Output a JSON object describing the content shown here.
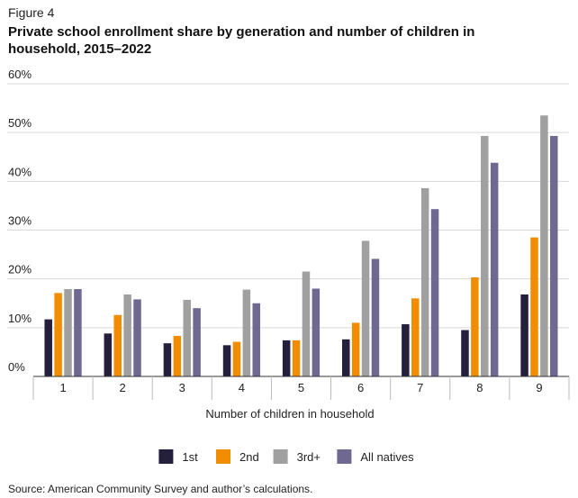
{
  "figure_label": "Figure 4",
  "title": "Private school enrollment share by generation and number of children in household, 2015–2022",
  "source": "Source: American Community Survey and author’s calculations.",
  "chart_data": {
    "type": "bar",
    "xlabel": "Number of children in household",
    "ylabel": "",
    "ylim": [
      0,
      60
    ],
    "yticks": [
      "0%",
      "10%",
      "20%",
      "30%",
      "40%",
      "50%",
      "60%"
    ],
    "grid": true,
    "legend_position": "bottom",
    "categories": [
      "1",
      "2",
      "3",
      "4",
      "5",
      "6",
      "7",
      "8",
      "9"
    ],
    "series": [
      {
        "name": "1st",
        "color": "#231f3d",
        "values": [
          11.7,
          8.8,
          6.8,
          6.4,
          7.4,
          7.6,
          10.7,
          9.5,
          16.8
        ]
      },
      {
        "name": "2nd",
        "color": "#f28c00",
        "values": [
          17.1,
          12.6,
          8.3,
          7.1,
          7.4,
          11.0,
          16.0,
          20.3,
          28.5
        ]
      },
      {
        "name": "3rd+",
        "color": "#a0a0a0",
        "values": [
          17.9,
          16.8,
          15.7,
          17.8,
          21.5,
          27.8,
          38.6,
          49.3,
          53.5
        ]
      },
      {
        "name": "All natives",
        "color": "#6f6890",
        "values": [
          17.9,
          15.8,
          14.0,
          15.0,
          18.0,
          24.1,
          34.3,
          43.8,
          49.3
        ]
      }
    ]
  }
}
